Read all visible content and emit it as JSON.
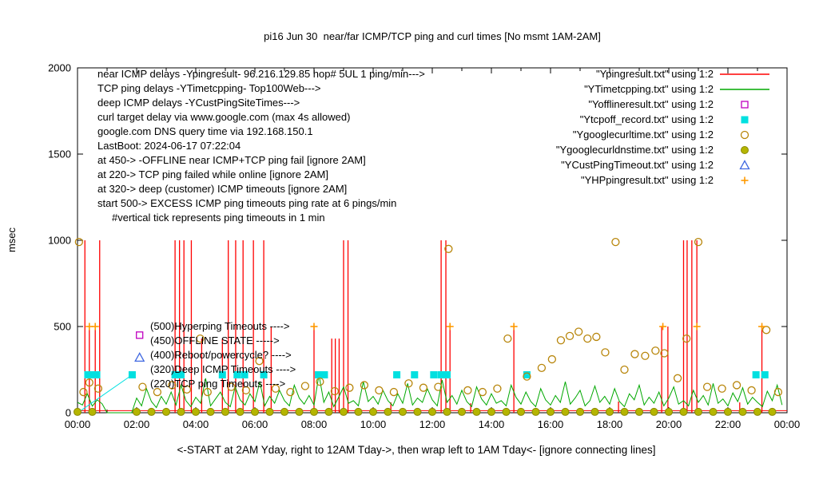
{
  "chart_data": {
    "type": "line",
    "title": "pi16 Jun 30  near/far ICMP/TCP ping and curl times [No msmt 1AM-2AM]",
    "ylabel": "msec",
    "xcaption": "<-START at 2AM Yday, right to 12AM Tday->, then wrap left to 1AM Tday<- [ignore connecting lines]",
    "ylim": [
      0,
      2000
    ],
    "xlim_hours": [
      0,
      24
    ],
    "yticks": [
      0,
      500,
      1000,
      1500,
      2000
    ],
    "ytick_labels": [
      "0",
      "500",
      "1000",
      "1500",
      "2000"
    ],
    "xticks_hours": [
      0,
      2,
      4,
      6,
      8,
      10,
      12,
      14,
      16,
      18,
      20,
      22,
      24
    ],
    "xtick_labels": [
      "00:00",
      "02:00",
      "04:00",
      "06:00",
      "08:00",
      "10:00",
      "12:00",
      "14:00",
      "16:00",
      "18:00",
      "20:00",
      "22:00",
      "00:00"
    ],
    "minor_xtick_step_hours": 1,
    "grid": false,
    "legend_position": "top-right",
    "series": [
      {
        "name": "Ypingresult.txt",
        "legend": "\"Ypingresult.txt\" using 1:2",
        "style": "impulses",
        "color": "#ff0000",
        "baseline_value": 12,
        "points": [
          [
            0.25,
            1000
          ],
          [
            0.4,
            500
          ],
          [
            0.6,
            500
          ],
          [
            0.75,
            1000
          ],
          [
            3.3,
            1000
          ],
          [
            3.45,
            1000
          ],
          [
            3.6,
            1000
          ],
          [
            3.85,
            1000
          ],
          [
            4.2,
            430
          ],
          [
            4.9,
            430
          ],
          [
            5.1,
            1000
          ],
          [
            5.35,
            1000
          ],
          [
            5.6,
            1000
          ],
          [
            5.95,
            1000
          ],
          [
            6.3,
            1000
          ],
          [
            6.55,
            500
          ],
          [
            8.0,
            500
          ],
          [
            8.6,
            430
          ],
          [
            8.72,
            430
          ],
          [
            8.85,
            430
          ],
          [
            9.0,
            1000
          ],
          [
            9.15,
            1000
          ],
          [
            10.6,
            60
          ],
          [
            12.3,
            1000
          ],
          [
            12.46,
            1000
          ],
          [
            12.6,
            500
          ],
          [
            13.3,
            55
          ],
          [
            14.76,
            500
          ],
          [
            18.3,
            65
          ],
          [
            19.76,
            500
          ],
          [
            19.97,
            500
          ],
          [
            20.5,
            1000
          ],
          [
            20.62,
            1000
          ],
          [
            20.78,
            1000
          ],
          [
            20.95,
            1000
          ],
          [
            22.4,
            60
          ],
          [
            23.15,
            500
          ]
        ]
      },
      {
        "name": "YTimetcpping.txt",
        "legend": "\"YTimetcpping.txt\" using 1:2",
        "style": "line",
        "color": "#00a800",
        "x_step_min": 10,
        "values": [
          60,
          45,
          110,
          38,
          75,
          52,
          0,
          0,
          0,
          0,
          0,
          0,
          85,
          40,
          140,
          65,
          30,
          95,
          50,
          120,
          45,
          160,
          70,
          35,
          90,
          55,
          200,
          40,
          80,
          120,
          60,
          35,
          150,
          75,
          45,
          110,
          65,
          180,
          40,
          95,
          55,
          130,
          70,
          40,
          160,
          85,
          50,
          100,
          45,
          220,
          60,
          120,
          35,
          90,
          150,
          55,
          70,
          40,
          180,
          65,
          95,
          50,
          130,
          70,
          40,
          110,
          55,
          170,
          45,
          85,
          60,
          140,
          75,
          40,
          190,
          60,
          100,
          50,
          130,
          65,
          35,
          150,
          80,
          45,
          110,
          55,
          70,
          40,
          160,
          90,
          50,
          120,
          65,
          35,
          140,
          75,
          45,
          100,
          60,
          180,
          50,
          85,
          130,
          40,
          70,
          155,
          60,
          95,
          50,
          140,
          65,
          35,
          110,
          75,
          160,
          45,
          90,
          55,
          120,
          40,
          85,
          150,
          50,
          70,
          40,
          130,
          60,
          100,
          45,
          170,
          55,
          80,
          40,
          115,
          65,
          145,
          50,
          90,
          60,
          35,
          125,
          70,
          160,
          45
        ]
      },
      {
        "name": "Yofflineresult.txt",
        "legend": "\"Yofflineresult.txt\" using 1:2",
        "style": "open-square",
        "color": "#c000c0",
        "points": [
          [
            2.1,
            450
          ]
        ]
      },
      {
        "name": "Ytcpoff_record.txt",
        "legend": "\"Ytcpoff_record.txt\" using 1:2",
        "style": "filled-square",
        "color": "#00e0e0",
        "level": 220,
        "times": [
          0.35,
          0.5,
          0.65,
          1.85,
          3.3,
          3.5,
          4.9,
          5.4,
          5.65,
          6.3,
          8.15,
          8.35,
          10.8,
          11.4,
          12.05,
          12.3,
          12.5,
          15.2,
          22.95,
          23.25
        ],
        "connector": [
          [
            0.05,
            5
          ],
          [
            1.85,
            220
          ]
        ]
      },
      {
        "name": "Ygooglecurltime.txt",
        "legend": "\"Ygooglecurltime.txt\" using 1:2",
        "style": "open-circle",
        "color": "#b8860b",
        "points": [
          [
            0.05,
            990
          ],
          [
            0.2,
            120
          ],
          [
            0.4,
            175
          ],
          [
            0.7,
            140
          ],
          [
            2.2,
            150
          ],
          [
            2.7,
            120
          ],
          [
            3.2,
            160
          ],
          [
            3.7,
            135
          ],
          [
            4.15,
            430
          ],
          [
            4.4,
            120
          ],
          [
            5.2,
            150
          ],
          [
            5.7,
            130
          ],
          [
            6.15,
            300
          ],
          [
            6.7,
            140
          ],
          [
            7.2,
            120
          ],
          [
            7.7,
            155
          ],
          [
            8.2,
            180
          ],
          [
            8.7,
            125
          ],
          [
            9.2,
            145
          ],
          [
            9.7,
            160
          ],
          [
            10.2,
            130
          ],
          [
            10.7,
            120
          ],
          [
            11.2,
            170
          ],
          [
            11.7,
            145
          ],
          [
            12.2,
            150
          ],
          [
            12.55,
            950
          ],
          [
            13.2,
            130
          ],
          [
            13.7,
            120
          ],
          [
            14.2,
            140
          ],
          [
            14.55,
            430
          ],
          [
            15.2,
            210
          ],
          [
            15.7,
            260
          ],
          [
            16.05,
            310
          ],
          [
            16.35,
            420
          ],
          [
            16.65,
            445
          ],
          [
            16.95,
            470
          ],
          [
            17.25,
            430
          ],
          [
            17.55,
            440
          ],
          [
            17.85,
            350
          ],
          [
            18.2,
            990
          ],
          [
            18.5,
            250
          ],
          [
            18.85,
            340
          ],
          [
            19.2,
            330
          ],
          [
            19.55,
            360
          ],
          [
            19.85,
            345
          ],
          [
            20.3,
            200
          ],
          [
            20.6,
            430
          ],
          [
            21.0,
            990
          ],
          [
            21.3,
            150
          ],
          [
            21.8,
            140
          ],
          [
            22.3,
            160
          ],
          [
            22.8,
            130
          ],
          [
            23.3,
            480
          ],
          [
            23.7,
            120
          ]
        ]
      },
      {
        "name": "Ygooglecurldnstime.txt",
        "legend": "\"Ygooglecurldnstime.txt\" using 1:2",
        "style": "filled-circle",
        "color": "#b5b500",
        "level": 5,
        "times": [
          0,
          0.5,
          2,
          2.5,
          3,
          3.5,
          4,
          4.5,
          5,
          5.5,
          6,
          6.5,
          7,
          7.5,
          8,
          8.5,
          9,
          9.5,
          10,
          10.5,
          11,
          11.5,
          12,
          12.5,
          13,
          13.5,
          14,
          14.5,
          15,
          15.5,
          16,
          16.5,
          17,
          17.5,
          18,
          18.5,
          19,
          19.5,
          20,
          20.5,
          21,
          21.5,
          22,
          22.5,
          23,
          23.5
        ]
      },
      {
        "name": "YCustPingTimeout.txt",
        "legend": "\"YCustPingTimeout.txt\" using 1:2",
        "style": "open-triangle",
        "color": "#4169e1",
        "points": [
          [
            2.1,
            320
          ]
        ]
      },
      {
        "name": "YHPpingresult.txt",
        "legend": "\"YHPpingresult.txt\" using 1:2",
        "style": "plus",
        "color": "#ff9900",
        "level": 500,
        "times": [
          0.4,
          0.6,
          8.0,
          12.6,
          14.76,
          19.8,
          20.95,
          23.15
        ]
      }
    ],
    "annotations": {
      "info_lines": [
        "near ICMP delays -Ypingresult- 96.216.129.85 hop# 5UL 1 ping/min--->",
        "TCP ping delays -YTimetcpping- Top100Web--->",
        "deep ICMP delays -YCustPingSiteTimes--->",
        "curl target delay via www.google.com (max 4s allowed)",
        "google.com DNS query time via 192.168.150.1",
        "LastBoot: 2024-06-17 07:22:04",
        "at 450-> -OFFLINE near ICMP+TCP ping fail [ignore 2AM]",
        "at 220-> TCP ping failed while online [ignore 2AM]",
        "at 320-> deep (customer) ICMP timeouts [ignore 2AM]",
        "start 500-> EXCESS ICMP ping timeouts ping rate at 6 pings/min",
        "#vertical tick represents ping timeouts in 1 min"
      ],
      "level_labels": [
        {
          "text": "(500)Hyperping Timeouts ---->",
          "value": 500
        },
        {
          "text": "(450)OFFLINE STATE ----->",
          "value": 450
        },
        {
          "text": "(400)Reboot/powercycle? ---->",
          "value": 400
        },
        {
          "text": "(320)Deep ICMP Timeouts ---->",
          "value": 320
        },
        {
          "text": "(220)TCP ping Timeouts ---->",
          "value": 220
        }
      ]
    }
  }
}
